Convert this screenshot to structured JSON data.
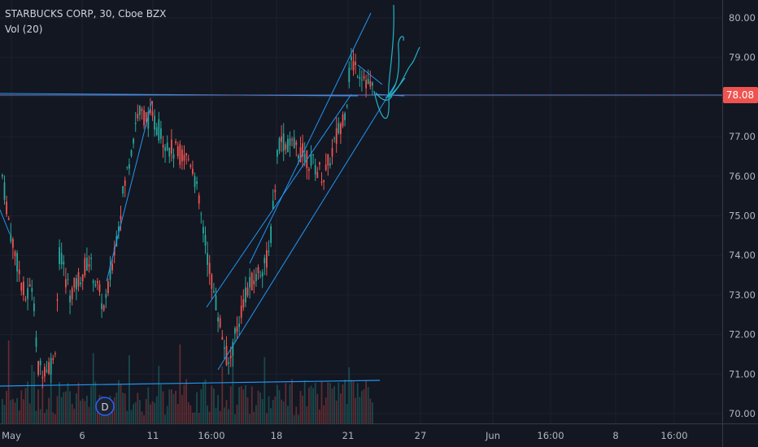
{
  "header": {
    "title": "STARBUCKS CORP, 30, Cboe BZX",
    "volume_label": "Vol (20)"
  },
  "colors": {
    "background": "#131722",
    "up": "#26a69a",
    "down": "#ef5350",
    "drawing": "#2196f3",
    "hline": "#ff4a68",
    "axis_text": "#b2b5be",
    "axis_line": "#363a45"
  },
  "chart_data": {
    "type": "candlestick",
    "symbol": "STARBUCKS CORP",
    "interval": "30",
    "exchange": "Cboe BZX",
    "ylim": [
      69.8,
      80.35
    ],
    "y_ticks": [
      "80.00",
      "79.00",
      "78.00",
      "77.00",
      "76.00",
      "75.00",
      "74.00",
      "73.00",
      "72.00",
      "71.00",
      "70.00"
    ],
    "x_ticks": [
      "May",
      "6",
      "11",
      "16:00",
      "18",
      "21",
      "27",
      "Jun",
      "16:00",
      "8",
      "16:00"
    ],
    "last_price": "78.08",
    "price_series_overview": [
      {
        "label": "May",
        "price": 76.0
      },
      {
        "label": "",
        "price": 73.0
      },
      {
        "label": "",
        "price": 71.1
      },
      {
        "label": "6",
        "price": 73.2
      },
      {
        "label": "",
        "price": 73.0
      },
      {
        "label": "11",
        "price": 77.5
      },
      {
        "label": "",
        "price": 76.6
      },
      {
        "label": "16:00",
        "price": 73.0
      },
      {
        "label": "",
        "price": 71.1
      },
      {
        "label": "",
        "price": 74.0
      },
      {
        "label": "18",
        "price": 76.8
      },
      {
        "label": "",
        "price": 76.0
      },
      {
        "label": "21",
        "price": 78.9
      },
      {
        "label": "",
        "price": 78.1
      }
    ],
    "annotations": [
      {
        "type": "event_marker",
        "label": "D"
      }
    ],
    "volume_indicator": {
      "name": "Vol",
      "length": 20
    }
  }
}
